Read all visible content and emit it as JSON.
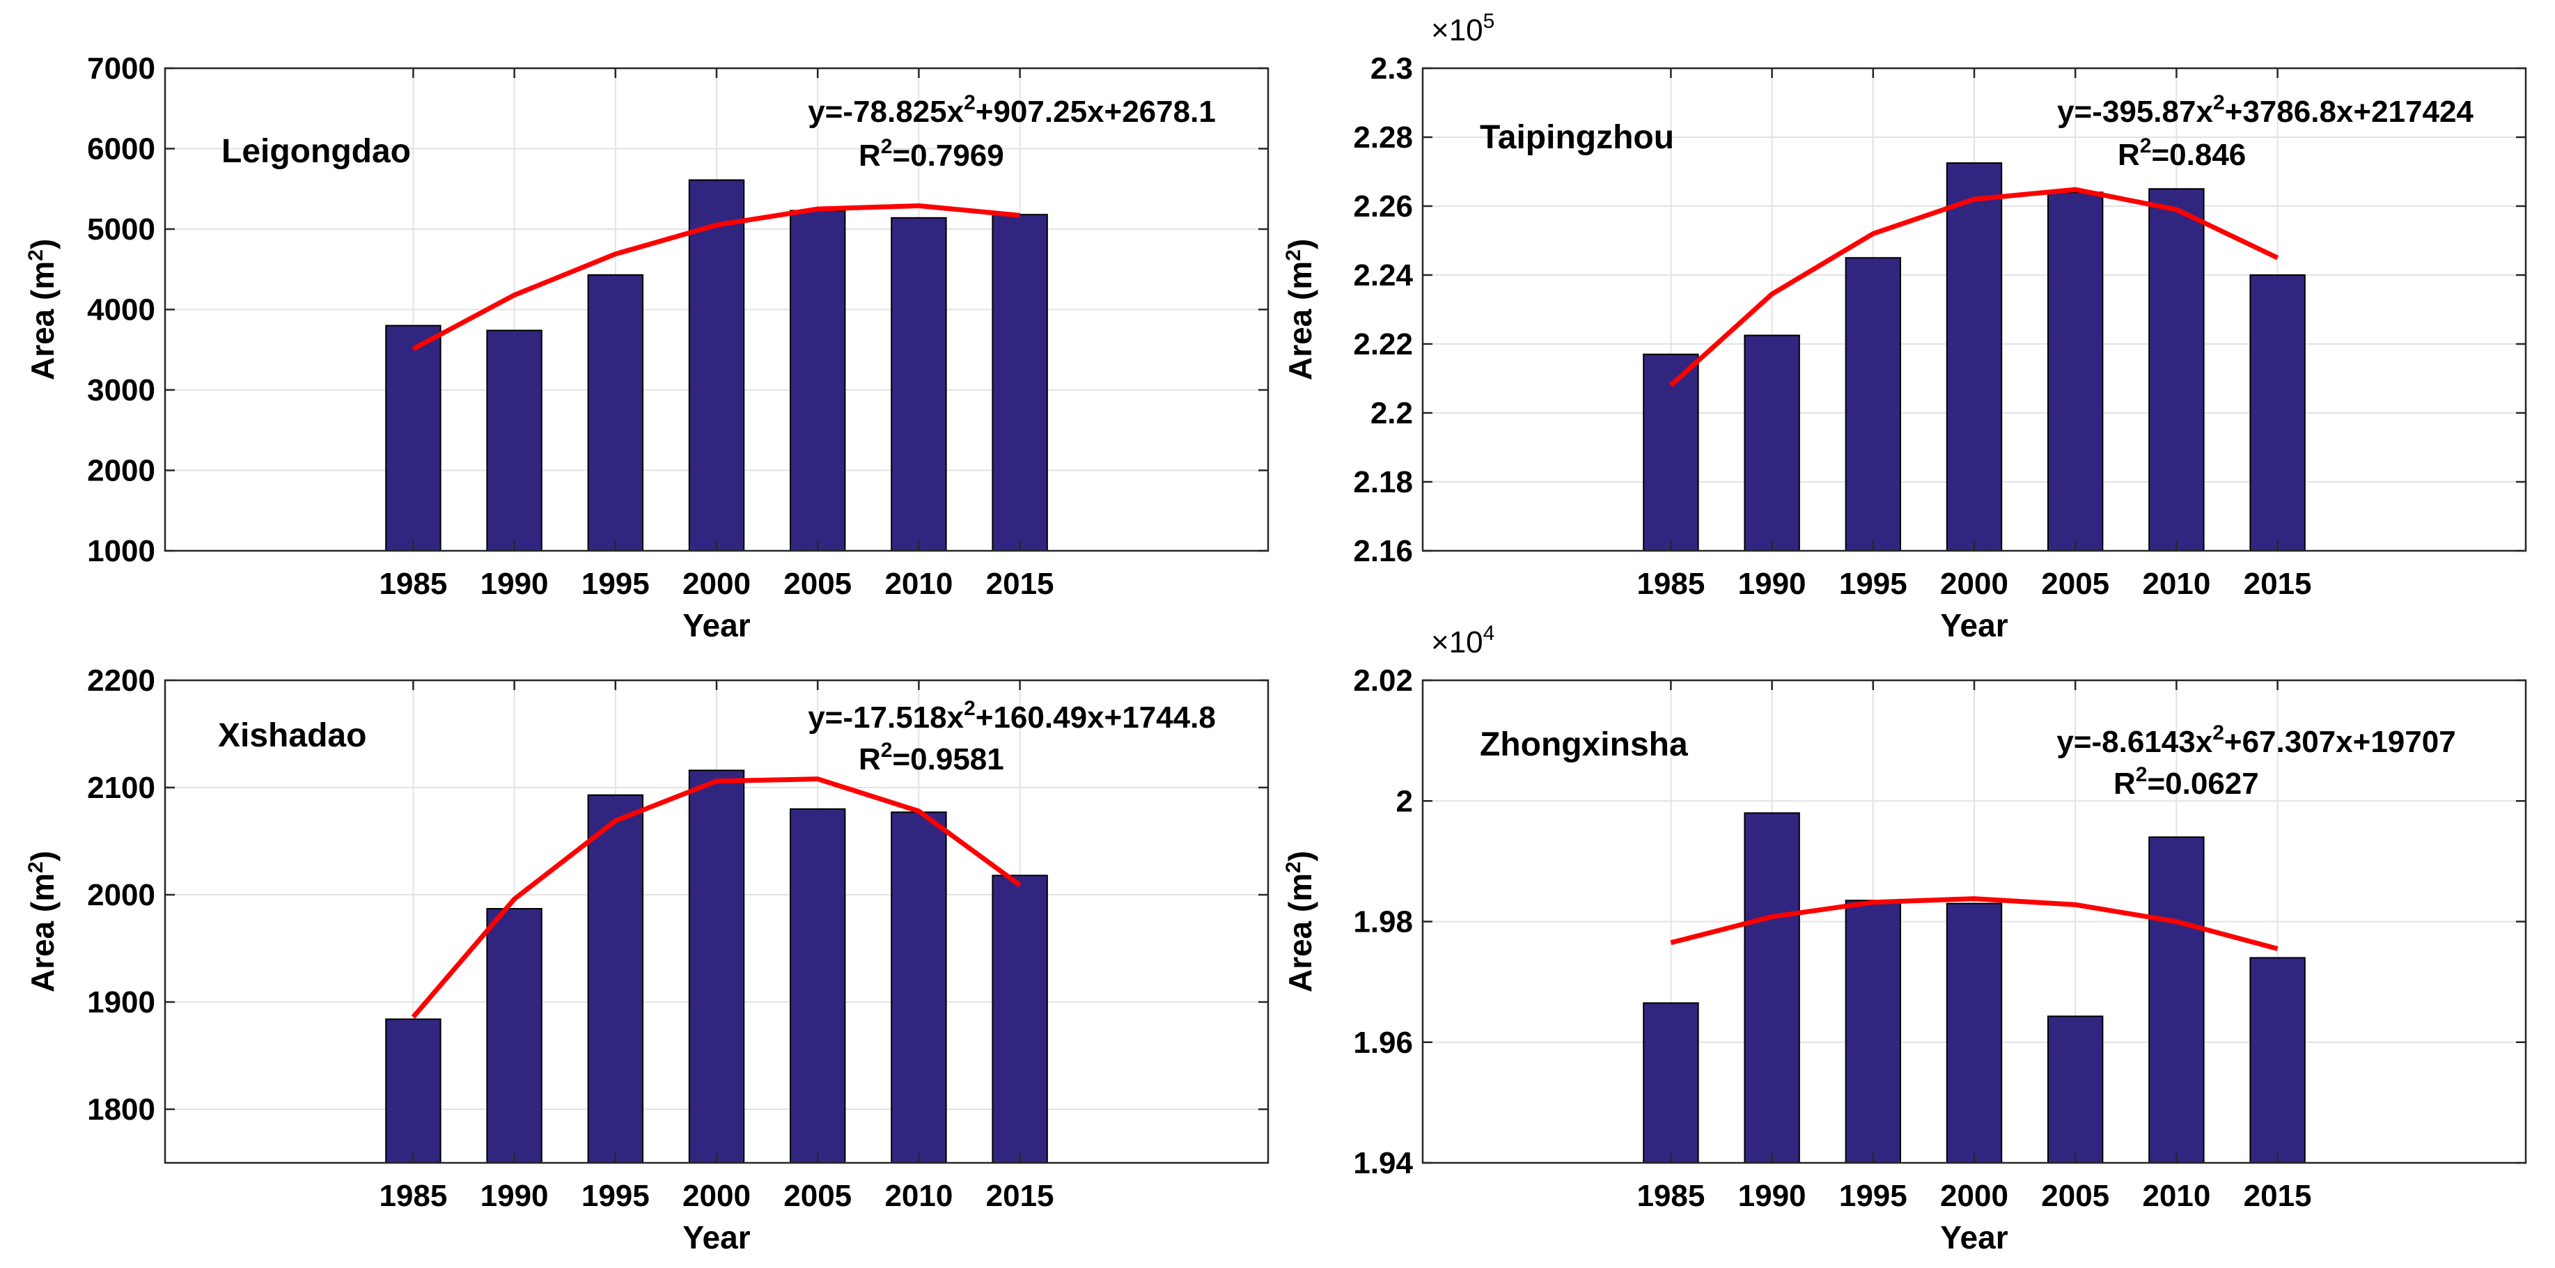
{
  "figure": {
    "background": "#ffffff",
    "bar_color": "#31267f",
    "fit_color": "#ff0000",
    "grid_color": "#e3e3e3"
  },
  "chart_data": [
    {
      "type": "bar",
      "name": "Leigongdao",
      "categories": [
        "1985",
        "1990",
        "1995",
        "2000",
        "2005",
        "2010",
        "2015"
      ],
      "values": [
        3800,
        3740,
        4430,
        5610,
        5230,
        5140,
        5180
      ],
      "fit": [
        3510,
        4180,
        4690,
        5050,
        5250,
        5290,
        5170
      ],
      "equation": "y=-78.825x",
      "equation_exp": "2",
      "equation_rest": "+907.25x+2678.1",
      "r2_label": "R",
      "r2_exp": "2",
      "r2_value": "=0.7969",
      "xlabel": "Year",
      "ylabel": "Area (m",
      "ylabel_exp": "2",
      "ylabel_close": ")",
      "ylim": [
        1000,
        7000
      ],
      "yticks": [
        "1000",
        "2000",
        "3000",
        "4000",
        "5000",
        "6000",
        "7000"
      ],
      "yscale_label": "",
      "yscale_exp": "",
      "grid": true
    },
    {
      "type": "bar",
      "name": "Taipingzhou",
      "categories": [
        "1985",
        "1990",
        "1995",
        "2000",
        "2005",
        "2010",
        "2015"
      ],
      "values": [
        2.217,
        2.2225,
        2.245,
        2.2725,
        2.264,
        2.265,
        2.24
      ],
      "fit": [
        2.208,
        2.2345,
        2.252,
        2.262,
        2.2648,
        2.259,
        2.245
      ],
      "equation": "y=-395.87x",
      "equation_exp": "2",
      "equation_rest": "+3786.8x+217424",
      "r2_label": "R",
      "r2_exp": "2",
      "r2_value": "=0.846",
      "xlabel": "Year",
      "ylabel": "Area (m",
      "ylabel_exp": "2",
      "ylabel_close": ")",
      "ylim": [
        2.16,
        2.3
      ],
      "yticks": [
        "2.16",
        "2.18",
        "2.2",
        "2.22",
        "2.24",
        "2.26",
        "2.28",
        "2.3"
      ],
      "yscale_label": "×10",
      "yscale_exp": "5",
      "grid": true
    },
    {
      "type": "bar",
      "name": "Xishadao",
      "categories": [
        "1985",
        "1990",
        "1995",
        "2000",
        "2005",
        "2010",
        "2015"
      ],
      "values": [
        1884,
        1987,
        2093,
        2116,
        2080,
        2077,
        2018
      ],
      "fit": [
        1886,
        1996,
        2069,
        2106,
        2108,
        2078,
        2009
      ],
      "equation": "y=-17.518x",
      "equation_exp": "2",
      "equation_rest": "+160.49x+1744.8",
      "r2_label": "R",
      "r2_exp": "2",
      "r2_value": "=0.9581",
      "xlabel": "Year",
      "ylabel": "Area (m",
      "ylabel_exp": "2",
      "ylabel_close": ")",
      "ylim": [
        1750,
        2200
      ],
      "yticks": [
        "1800",
        "1900",
        "2000",
        "2100",
        "2200"
      ],
      "yscale_label": "",
      "yscale_exp": "",
      "grid": true
    },
    {
      "type": "bar",
      "name": "Zhongxinsha",
      "categories": [
        "1985",
        "1990",
        "1995",
        "2000",
        "2005",
        "2010",
        "2015"
      ],
      "values": [
        1.9665,
        1.998,
        1.9835,
        1.983,
        1.9643,
        1.994,
        1.974
      ],
      "fit": [
        1.9765,
        1.9808,
        1.9832,
        1.9838,
        1.9828,
        1.98,
        1.9755
      ],
      "equation": "y=-8.6143x",
      "equation_exp": "2",
      "equation_rest": "+67.307x+19707",
      "r2_label": "R",
      "r2_exp": "2",
      "r2_value": "=0.0627",
      "xlabel": "Year",
      "ylabel": "Area (m",
      "ylabel_exp": "2",
      "ylabel_close": ")",
      "ylim": [
        1.94,
        2.02
      ],
      "yticks": [
        "1.94",
        "1.96",
        "1.98",
        "2",
        "2.02"
      ],
      "yscale_label": "×10",
      "yscale_exp": "4",
      "grid": true
    }
  ]
}
